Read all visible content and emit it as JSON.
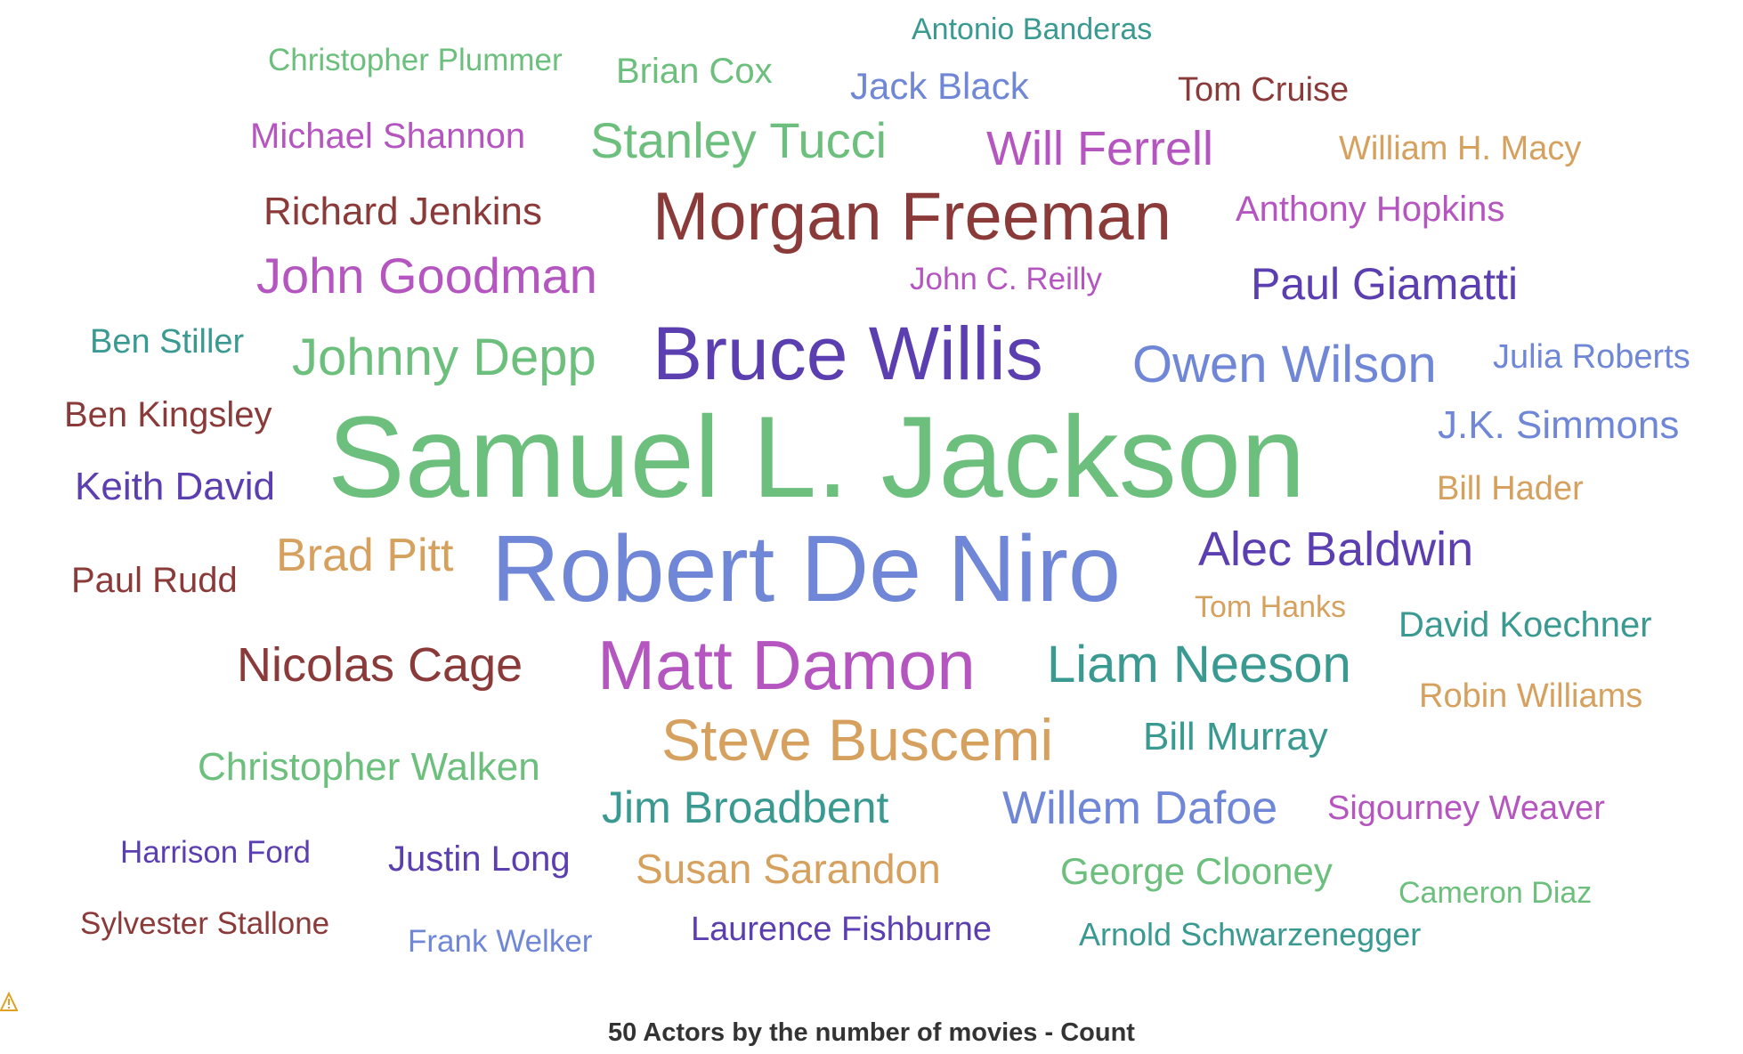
{
  "chart_data": {
    "type": "wordcloud",
    "title": "50 Actors by the number of movies - Count",
    "warning_icon": "warning-icon",
    "colors": {
      "red": "#8b3a3a",
      "green": "#6cbf7c",
      "blue": "#6f87d6",
      "purple": "#5b3fb0",
      "magenta": "#b455c0",
      "teal": "#3a9a91",
      "orange": "#d6a15e"
    },
    "words": [
      {
        "text": "Samuel L. Jackson",
        "color": "green"
      },
      {
        "text": "Robert De Niro",
        "color": "blue"
      },
      {
        "text": "Bruce Willis",
        "color": "purple"
      },
      {
        "text": "Morgan Freeman",
        "color": "red"
      },
      {
        "text": "Matt Damon",
        "color": "magenta"
      },
      {
        "text": "Steve Buscemi",
        "color": "orange"
      },
      {
        "text": "Liam Neeson",
        "color": "teal"
      },
      {
        "text": "Owen Wilson",
        "color": "blue"
      },
      {
        "text": "Johnny Depp",
        "color": "green"
      },
      {
        "text": "John Goodman",
        "color": "magenta"
      },
      {
        "text": "Stanley Tucci",
        "color": "green"
      },
      {
        "text": "Will Ferrell",
        "color": "magenta"
      },
      {
        "text": "Nicolas Cage",
        "color": "red"
      },
      {
        "text": "Willem Dafoe",
        "color": "blue"
      },
      {
        "text": "Alec Baldwin",
        "color": "purple"
      },
      {
        "text": "Paul Giamatti",
        "color": "purple"
      },
      {
        "text": "Jim Broadbent",
        "color": "teal"
      },
      {
        "text": "Brad Pitt",
        "color": "orange"
      },
      {
        "text": "Susan Sarandon",
        "color": "orange"
      },
      {
        "text": "Christopher Walken",
        "color": "green"
      },
      {
        "text": "Richard Jenkins",
        "color": "red"
      },
      {
        "text": "Keith David",
        "color": "purple"
      },
      {
        "text": "Ben Kingsley",
        "color": "red"
      },
      {
        "text": "Paul Rudd",
        "color": "red"
      },
      {
        "text": "J.K. Simmons",
        "color": "blue"
      },
      {
        "text": "Bill Murray",
        "color": "teal"
      },
      {
        "text": "George Clooney",
        "color": "green"
      },
      {
        "text": "Jack Black",
        "color": "blue"
      },
      {
        "text": "Brian Cox",
        "color": "green"
      },
      {
        "text": "Tom Cruise",
        "color": "red"
      },
      {
        "text": "Michael Shannon",
        "color": "magenta"
      },
      {
        "text": "Anthony Hopkins",
        "color": "magenta"
      },
      {
        "text": "William H. Macy",
        "color": "orange"
      },
      {
        "text": "Ben Stiller",
        "color": "teal"
      },
      {
        "text": "Julia Roberts",
        "color": "blue"
      },
      {
        "text": "Bill Hader",
        "color": "orange"
      },
      {
        "text": "David Koechner",
        "color": "teal"
      },
      {
        "text": "Robin Williams",
        "color": "orange"
      },
      {
        "text": "Sigourney Weaver",
        "color": "magenta"
      },
      {
        "text": "Justin Long",
        "color": "purple"
      },
      {
        "text": "Laurence Fishburne",
        "color": "purple"
      },
      {
        "text": "Christopher Plummer",
        "color": "green"
      },
      {
        "text": "Antonio Banderas",
        "color": "teal"
      },
      {
        "text": "John C. Reilly",
        "color": "magenta"
      },
      {
        "text": "Tom Hanks",
        "color": "orange"
      },
      {
        "text": "Harrison Ford",
        "color": "purple"
      },
      {
        "text": "Sylvester Stallone",
        "color": "red"
      },
      {
        "text": "Frank Welker",
        "color": "blue"
      },
      {
        "text": "Arnold Schwarzenegger",
        "color": "teal"
      },
      {
        "text": "Cameron Diaz",
        "color": "green"
      }
    ]
  }
}
